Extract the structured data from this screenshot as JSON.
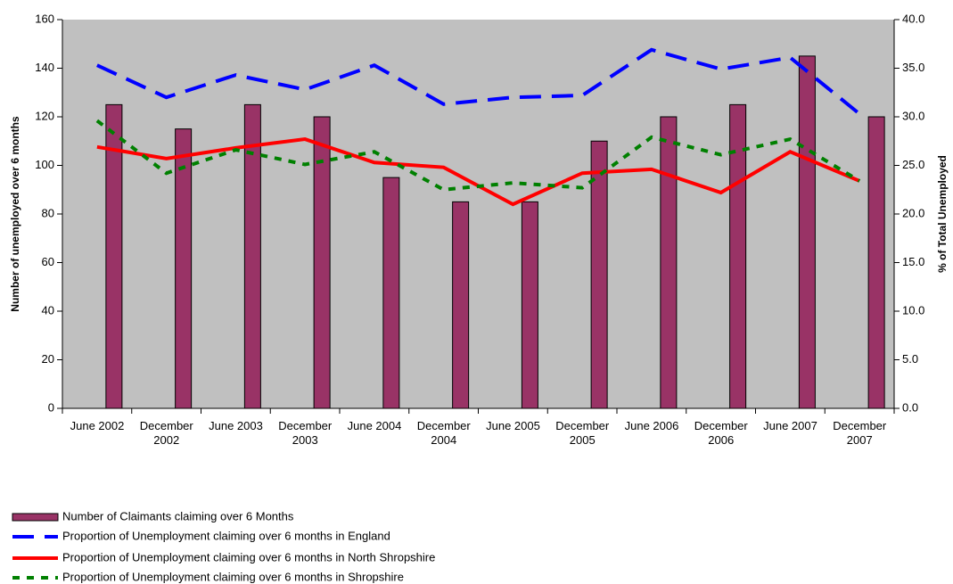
{
  "chart_data": {
    "type": "bar",
    "categories": [
      "June 2002",
      "December 2002",
      "June 2003",
      "December 2003",
      "June 2004",
      "December 2004",
      "June 2005",
      "December 2005",
      "June 2006",
      "December 2006",
      "June 2007",
      "December 2007"
    ],
    "ylabel": "Number of unemployed over 6 months",
    "y2label": "% of Total Unemployed",
    "ylim": [
      0,
      160
    ],
    "yticks": [
      0,
      20,
      40,
      60,
      80,
      100,
      120,
      140,
      160
    ],
    "y2lim": [
      0,
      40
    ],
    "y2ticks": [
      {
        "value": 0,
        "label": "0.0"
      },
      {
        "value": 5,
        "label": "5.0"
      },
      {
        "value": 10,
        "label": "10.0"
      },
      {
        "value": 15,
        "label": "15.0"
      },
      {
        "value": 20,
        "label": "20.0"
      },
      {
        "value": 25,
        "label": "25.0"
      },
      {
        "value": 30,
        "label": "30.0"
      },
      {
        "value": 35,
        "label": "35.0"
      },
      {
        "value": 40,
        "label": "40.0"
      }
    ],
    "series": [
      {
        "name": "Number of Claimants claiming over 6 Months",
        "type": "bar",
        "color": "#993366",
        "values": [
          125,
          115,
          125,
          120,
          95,
          85,
          85,
          110,
          120,
          125,
          145,
          120
        ]
      },
      {
        "name": "Proportion of Unemployment claiming over 6 months in England",
        "type": "line",
        "axis": "y2",
        "color": "#0000ff",
        "dash": "dashed",
        "values": [
          35.3,
          32.0,
          34.3,
          32.8,
          35.3,
          31.3,
          32.0,
          32.2,
          36.9,
          34.9,
          36.1,
          30.3
        ]
      },
      {
        "name": "Proportion of Unemployment claiming over 6 months in North Shropshire",
        "type": "line",
        "axis": "y2",
        "color": "#ff0000",
        "dash": "solid",
        "values": [
          26.9,
          25.7,
          26.8,
          27.7,
          25.3,
          24.8,
          21.0,
          24.2,
          24.6,
          22.2,
          26.4,
          23.4
        ]
      },
      {
        "name": "Proportion of Unemployment claiming over 6 months in Shropshire",
        "type": "line",
        "axis": "y2",
        "color": "#008000",
        "dash": "dotted",
        "values": [
          29.6,
          24.2,
          26.6,
          25.1,
          26.4,
          22.5,
          23.2,
          22.7,
          27.9,
          26.1,
          27.7,
          23.4
        ]
      }
    ]
  }
}
